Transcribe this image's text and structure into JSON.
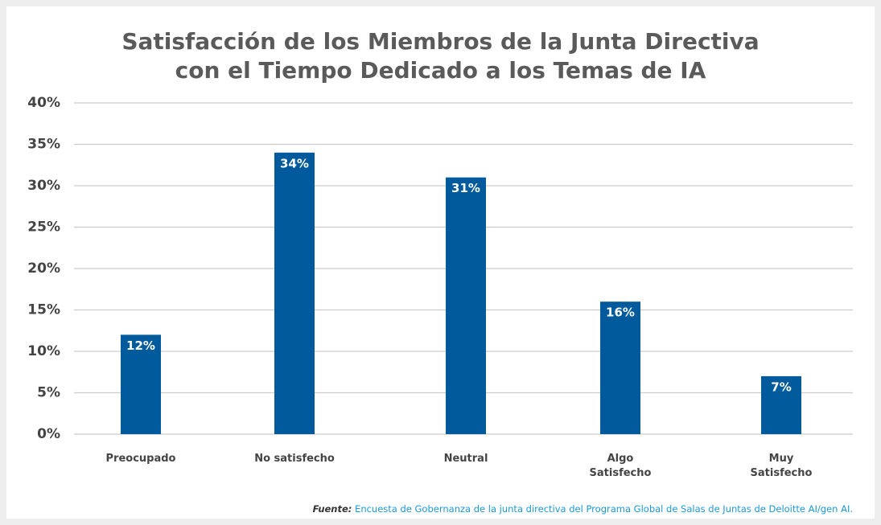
{
  "chart_data": {
    "type": "bar",
    "title": "Satisfacción de los Miembros de la Junta Directiva\ncon el Tiempo Dedicado a los Temas de IA",
    "categories": [
      "Preocupado",
      "No satisfecho",
      "Neutral",
      "Algo\nSatisfecho",
      "Muy\nSatisfecho"
    ],
    "values": [
      12,
      34,
      31,
      16,
      7
    ],
    "value_labels": [
      "12%",
      "34%",
      "31%",
      "16%",
      "7%"
    ],
    "color": "#005a9c",
    "ylim": [
      0,
      40
    ],
    "yticks": [
      {
        "value": 0,
        "label": "0%"
      },
      {
        "value": 5,
        "label": "5%"
      },
      {
        "value": 10,
        "label": "10%"
      },
      {
        "value": 15,
        "label": "15%"
      },
      {
        "value": 20,
        "label": "20%"
      },
      {
        "value": 25,
        "label": "25%"
      },
      {
        "value": 30,
        "label": "30%"
      },
      {
        "value": 35,
        "label": "35%"
      },
      {
        "value": 40,
        "label": "40%"
      }
    ],
    "grid": true,
    "source_label": "Fuente:",
    "source_text": "Encuesta de Gobernanza de la junta directiva del Programa Global de Salas de Juntas de Deloitte AI/gen AI."
  }
}
